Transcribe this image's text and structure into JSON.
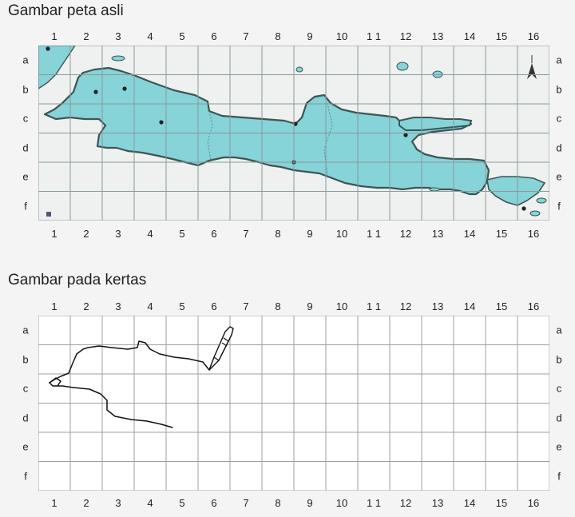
{
  "section_original": {
    "title": "Gambar peta asli"
  },
  "section_paper": {
    "title": "Gambar pada kertas"
  },
  "grid": {
    "columns": [
      "1",
      "2",
      "3",
      "4",
      "5",
      "6",
      "7",
      "8",
      "9",
      "10",
      "1 1",
      "12",
      "13",
      "14",
      "15",
      "16"
    ],
    "rows": [
      "a",
      "b",
      "c",
      "d",
      "e",
      "f"
    ]
  },
  "colors": {
    "sea": "#eef1ef",
    "land": "#86d3d8",
    "coast": "#3d5555",
    "grid_line": "#9aa0a0",
    "paper": "#ffffff",
    "ink": "#111111"
  },
  "icons": {
    "pen": "fountain-pen-icon",
    "compass": "north-arrow-icon"
  }
}
